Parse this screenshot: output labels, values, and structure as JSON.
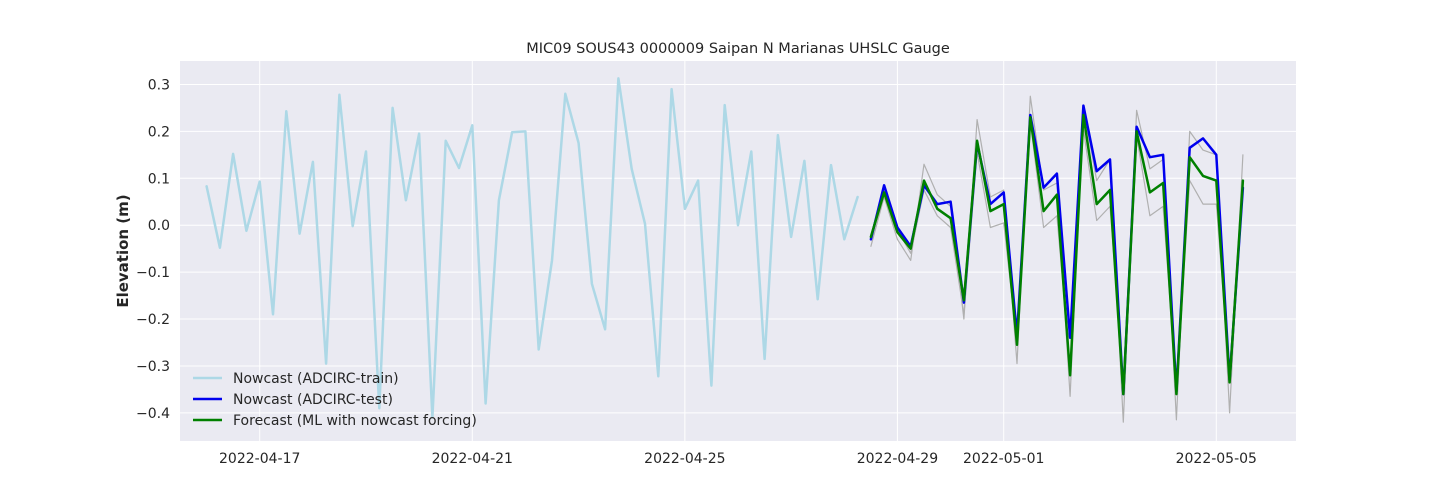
{
  "chart_data": {
    "type": "line",
    "title": "MIC09 SOUS43 0000009 Saipan N Marianas UHSLC Gauge",
    "xlabel": "",
    "ylabel": "Elevation (m)",
    "x_axis_type": "date",
    "xlim": [
      "2022-04-15T12:00",
      "2022-05-06T12:00"
    ],
    "ylim": [
      -0.46,
      0.35
    ],
    "x_ticks": [
      "2022-04-17",
      "2022-04-21",
      "2022-04-25",
      "2022-04-29",
      "2022-05-01",
      "2022-05-05"
    ],
    "y_ticks": [
      -0.4,
      -0.3,
      -0.2,
      -0.1,
      0.0,
      0.1,
      0.2,
      0.3
    ],
    "y_tick_labels": [
      "−0.4",
      "−0.3",
      "−0.2",
      "−0.1",
      "0.0",
      "0.1",
      "0.2",
      "0.3"
    ],
    "grid": true,
    "legend_position": "lower-left",
    "background_color": "#eaeaf2",
    "series": [
      {
        "name": "",
        "color": "#b0b0b0",
        "role": "ensemble",
        "x": [
          "2022-04-28T12:00",
          "2022-04-28T18:00",
          "2022-04-29T00:00",
          "2022-04-29T06:00",
          "2022-04-29T12:00",
          "2022-04-29T18:00",
          "2022-04-30T00:00",
          "2022-04-30T06:00",
          "2022-04-30T12:00",
          "2022-04-30T18:00",
          "2022-05-01T00:00",
          "2022-05-01T06:00",
          "2022-05-01T12:00",
          "2022-05-01T18:00",
          "2022-05-02T00:00",
          "2022-05-02T06:00",
          "2022-05-02T12:00",
          "2022-05-02T18:00",
          "2022-05-03T00:00",
          "2022-05-03T06:00",
          "2022-05-03T12:00",
          "2022-05-03T18:00",
          "2022-05-04T00:00",
          "2022-05-04T06:00",
          "2022-05-04T12:00",
          "2022-05-04T18:00",
          "2022-05-05T00:00",
          "2022-05-05T06:00",
          "2022-05-05T12:00"
        ],
        "values": [
          -0.045,
          0.06,
          -0.03,
          -0.075,
          0.13,
          0.065,
          0.04,
          -0.2,
          0.225,
          0.06,
          0.075,
          -0.295,
          0.275,
          0.075,
          0.09,
          -0.365,
          0.25,
          0.095,
          0.14,
          -0.42,
          0.245,
          0.12,
          0.14,
          -0.415,
          0.2,
          0.16,
          0.15,
          -0.4,
          0.15
        ]
      },
      {
        "name": "",
        "color": "#b0b0b0",
        "role": "ensemble",
        "x": [
          "2022-04-28T12:00",
          "2022-04-28T18:00",
          "2022-04-29T00:00",
          "2022-04-29T06:00",
          "2022-04-29T12:00",
          "2022-04-29T18:00",
          "2022-04-30T00:00",
          "2022-04-30T06:00",
          "2022-04-30T12:00",
          "2022-04-30T18:00",
          "2022-05-01T00:00",
          "2022-05-01T06:00",
          "2022-05-01T12:00",
          "2022-05-01T18:00",
          "2022-05-02T00:00",
          "2022-05-02T06:00",
          "2022-05-02T12:00",
          "2022-05-02T18:00",
          "2022-05-03T00:00",
          "2022-05-03T06:00",
          "2022-05-03T12:00",
          "2022-05-03T18:00",
          "2022-05-04T00:00",
          "2022-05-04T06:00",
          "2022-05-04T12:00",
          "2022-05-04T18:00",
          "2022-05-05T00:00",
          "2022-05-05T06:00",
          "2022-05-05T12:00"
        ],
        "values": [
          -0.02,
          0.075,
          -0.01,
          -0.06,
          0.075,
          0.02,
          -0.005,
          -0.19,
          0.155,
          -0.005,
          0.005,
          -0.25,
          0.22,
          -0.005,
          0.02,
          -0.3,
          0.205,
          0.01,
          0.04,
          -0.33,
          0.19,
          0.02,
          0.04,
          -0.35,
          0.095,
          0.045,
          0.045,
          -0.32,
          0.07
        ]
      },
      {
        "name": "Nowcast (ADCIRC-train)",
        "color": "#add8e6",
        "x": [
          "2022-04-16T00:00",
          "2022-04-16T06:00",
          "2022-04-16T12:00",
          "2022-04-16T18:00",
          "2022-04-17T00:00",
          "2022-04-17T06:00",
          "2022-04-17T12:00",
          "2022-04-17T18:00",
          "2022-04-18T00:00",
          "2022-04-18T06:00",
          "2022-04-18T12:00",
          "2022-04-18T18:00",
          "2022-04-19T00:00",
          "2022-04-19T06:00",
          "2022-04-19T12:00",
          "2022-04-19T18:00",
          "2022-04-20T00:00",
          "2022-04-20T06:00",
          "2022-04-20T12:00",
          "2022-04-20T18:00",
          "2022-04-21T00:00",
          "2022-04-21T06:00",
          "2022-04-21T12:00",
          "2022-04-21T18:00",
          "2022-04-22T00:00",
          "2022-04-22T06:00",
          "2022-04-22T12:00",
          "2022-04-22T18:00",
          "2022-04-23T00:00",
          "2022-04-23T06:00",
          "2022-04-23T12:00",
          "2022-04-23T18:00",
          "2022-04-24T00:00",
          "2022-04-24T06:00",
          "2022-04-24T12:00",
          "2022-04-24T18:00",
          "2022-04-25T00:00",
          "2022-04-25T06:00",
          "2022-04-25T12:00",
          "2022-04-25T18:00",
          "2022-04-26T00:00",
          "2022-04-26T06:00",
          "2022-04-26T12:00",
          "2022-04-26T18:00",
          "2022-04-27T00:00",
          "2022-04-27T06:00",
          "2022-04-27T12:00",
          "2022-04-27T18:00",
          "2022-04-28T00:00",
          "2022-04-28T06:00"
        ],
        "values": [
          0.083,
          -0.048,
          0.152,
          -0.012,
          0.093,
          -0.19,
          0.243,
          -0.018,
          0.135,
          -0.295,
          0.278,
          -0.002,
          0.157,
          -0.39,
          0.25,
          0.053,
          0.195,
          -0.41,
          0.18,
          0.122,
          0.213,
          -0.38,
          0.053,
          0.198,
          0.2,
          -0.265,
          -0.075,
          0.28,
          0.175,
          -0.125,
          -0.222,
          0.313,
          0.12,
          0.003,
          -0.322,
          0.29,
          0.035,
          0.095,
          -0.342,
          0.256,
          0.0,
          0.157,
          -0.285,
          0.192,
          -0.025,
          0.137,
          -0.158,
          0.128,
          -0.03,
          0.06
        ]
      },
      {
        "name": "Nowcast (ADCIRC-test)",
        "color": "#0000ee",
        "x": [
          "2022-04-28T12:00",
          "2022-04-28T18:00",
          "2022-04-29T00:00",
          "2022-04-29T06:00",
          "2022-04-29T12:00",
          "2022-04-29T18:00",
          "2022-04-30T00:00",
          "2022-04-30T06:00",
          "2022-04-30T12:00",
          "2022-04-30T18:00",
          "2022-05-01T00:00",
          "2022-05-01T06:00",
          "2022-05-01T12:00",
          "2022-05-01T18:00",
          "2022-05-02T00:00",
          "2022-05-02T06:00",
          "2022-05-02T12:00",
          "2022-05-02T18:00",
          "2022-05-03T00:00",
          "2022-05-03T06:00",
          "2022-05-03T12:00",
          "2022-05-03T18:00",
          "2022-05-04T00:00",
          "2022-05-04T06:00",
          "2022-05-04T12:00",
          "2022-05-04T18:00",
          "2022-05-05T00:00",
          "2022-05-05T06:00",
          "2022-05-05T12:00"
        ],
        "values": [
          -0.03,
          0.085,
          -0.005,
          -0.045,
          0.085,
          0.045,
          0.05,
          -0.165,
          0.175,
          0.045,
          0.07,
          -0.235,
          0.235,
          0.08,
          0.11,
          -0.24,
          0.255,
          0.115,
          0.14,
          -0.36,
          0.21,
          0.145,
          0.15,
          -0.355,
          0.165,
          0.185,
          0.15,
          -0.33,
          0.08
        ]
      },
      {
        "name": "Forecast (ML with nowcast forcing)",
        "color": "#008000",
        "x": [
          "2022-04-28T12:00",
          "2022-04-28T18:00",
          "2022-04-29T00:00",
          "2022-04-29T06:00",
          "2022-04-29T12:00",
          "2022-04-29T18:00",
          "2022-04-30T00:00",
          "2022-04-30T06:00",
          "2022-04-30T12:00",
          "2022-04-30T18:00",
          "2022-05-01T00:00",
          "2022-05-01T06:00",
          "2022-05-01T12:00",
          "2022-05-01T18:00",
          "2022-05-02T00:00",
          "2022-05-02T06:00",
          "2022-05-02T12:00",
          "2022-05-02T18:00",
          "2022-05-03T00:00",
          "2022-05-03T06:00",
          "2022-05-03T12:00",
          "2022-05-03T18:00",
          "2022-05-04T00:00",
          "2022-05-04T06:00",
          "2022-05-04T12:00",
          "2022-05-04T18:00",
          "2022-05-05T00:00",
          "2022-05-05T06:00",
          "2022-05-05T12:00"
        ],
        "values": [
          -0.025,
          0.07,
          -0.015,
          -0.05,
          0.095,
          0.035,
          0.015,
          -0.16,
          0.18,
          0.03,
          0.045,
          -0.255,
          0.23,
          0.03,
          0.065,
          -0.32,
          0.235,
          0.045,
          0.075,
          -0.36,
          0.2,
          0.07,
          0.09,
          -0.36,
          0.145,
          0.105,
          0.095,
          -0.335,
          0.095
        ]
      }
    ]
  }
}
